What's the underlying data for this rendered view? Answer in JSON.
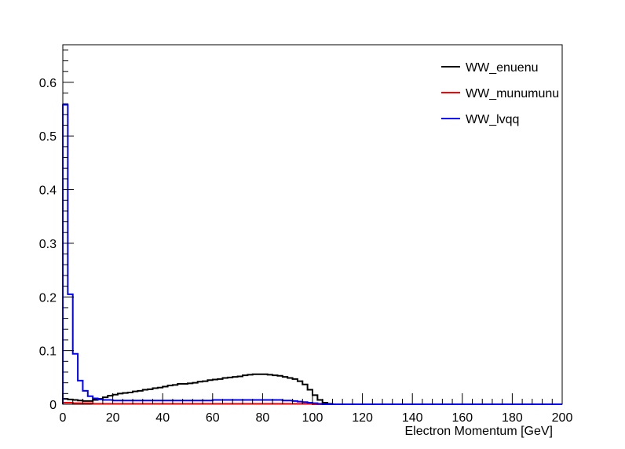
{
  "chart_data": {
    "type": "line",
    "xlabel": "Electron Momentum [GeV]",
    "ylabel": "",
    "xlim": [
      0,
      200
    ],
    "ylim": [
      0,
      0.67
    ],
    "bin_width": 2,
    "x_ticks": [
      "0",
      "20",
      "40",
      "60",
      "80",
      "100",
      "120",
      "140",
      "160",
      "180",
      "200"
    ],
    "y_ticks": [
      "0",
      "0.1",
      "0.2",
      "0.3",
      "0.4",
      "0.5",
      "0.6"
    ],
    "legend_position": "top-right",
    "grid": false,
    "series": [
      {
        "name": "WW_enuenu",
        "color": "#000000",
        "values": [
          0.01,
          0.009,
          0.008,
          0.007,
          0.006,
          0.006,
          0.008,
          0.01,
          0.013,
          0.016,
          0.018,
          0.02,
          0.021,
          0.022,
          0.024,
          0.025,
          0.027,
          0.028,
          0.03,
          0.031,
          0.033,
          0.035,
          0.036,
          0.038,
          0.038,
          0.039,
          0.04,
          0.042,
          0.043,
          0.045,
          0.046,
          0.047,
          0.049,
          0.05,
          0.051,
          0.052,
          0.054,
          0.055,
          0.056,
          0.056,
          0.056,
          0.055,
          0.054,
          0.053,
          0.051,
          0.049,
          0.047,
          0.043,
          0.037,
          0.027,
          0.017,
          0.008,
          0.003,
          0.001,
          0.0,
          0.0,
          0.0,
          0.0,
          0.0,
          0.0,
          0.0,
          0.0,
          0.0,
          0.0,
          0.0,
          0.0,
          0.0,
          0.0,
          0.0,
          0.0,
          0.0,
          0.0,
          0.0,
          0.0,
          0.0,
          0.0,
          0.0,
          0.0,
          0.0,
          0.0,
          0.0,
          0.0,
          0.0,
          0.0,
          0.0,
          0.0,
          0.0,
          0.0,
          0.0,
          0.0,
          0.0,
          0.0,
          0.0,
          0.0,
          0.0,
          0.0,
          0.0,
          0.0,
          0.0,
          0.0
        ]
      },
      {
        "name": "WW_munumunu",
        "color": "#ff0000",
        "values": [
          0.003,
          0.003,
          0.002,
          0.002,
          0.002,
          0.002,
          0.001,
          0.001,
          0.001,
          0.001,
          0.001,
          0.001,
          0.001,
          0.001,
          0.001,
          0.001,
          0.001,
          0.001,
          0.001,
          0.001,
          0.001,
          0.001,
          0.001,
          0.001,
          0.001,
          0.001,
          0.001,
          0.001,
          0.001,
          0.001,
          0.001,
          0.001,
          0.001,
          0.001,
          0.001,
          0.001,
          0.001,
          0.001,
          0.001,
          0.001,
          0.001,
          0.001,
          0.001,
          0.001,
          0.001,
          0.001,
          0.001,
          0.001,
          0.001,
          0.001,
          0.0,
          0.0,
          0.0,
          0.0,
          0.0,
          0.0,
          0.0,
          0.0,
          0.0,
          0.0,
          0.0,
          0.0,
          0.0,
          0.0,
          0.0,
          0.0,
          0.0,
          0.0,
          0.0,
          0.0,
          0.0,
          0.0,
          0.0,
          0.0,
          0.0,
          0.0,
          0.0,
          0.0,
          0.0,
          0.0,
          0.0,
          0.0,
          0.0,
          0.0,
          0.0,
          0.0,
          0.0,
          0.0,
          0.0,
          0.0,
          0.0,
          0.0,
          0.0,
          0.0,
          0.0,
          0.0,
          0.0,
          0.0,
          0.0,
          0.0
        ]
      },
      {
        "name": "WW_lvqq",
        "color": "#0000ff",
        "values": [
          0.558,
          0.205,
          0.094,
          0.044,
          0.025,
          0.015,
          0.011,
          0.009,
          0.008,
          0.008,
          0.007,
          0.007,
          0.007,
          0.007,
          0.007,
          0.007,
          0.007,
          0.007,
          0.007,
          0.007,
          0.007,
          0.007,
          0.007,
          0.007,
          0.007,
          0.007,
          0.007,
          0.007,
          0.007,
          0.007,
          0.008,
          0.008,
          0.008,
          0.008,
          0.008,
          0.008,
          0.008,
          0.008,
          0.008,
          0.008,
          0.008,
          0.008,
          0.008,
          0.008,
          0.007,
          0.007,
          0.006,
          0.005,
          0.004,
          0.003,
          0.002,
          0.001,
          0.0,
          0.0,
          0.0,
          0.0,
          0.0,
          0.0,
          0.0,
          0.0,
          0.0,
          0.0,
          0.0,
          0.0,
          0.0,
          0.0,
          0.0,
          0.0,
          0.0,
          0.0,
          0.0,
          0.0,
          0.0,
          0.0,
          0.0,
          0.0,
          0.0,
          0.0,
          0.0,
          0.0,
          0.0,
          0.0,
          0.0,
          0.0,
          0.0,
          0.0,
          0.0,
          0.0,
          0.0,
          0.0,
          0.0,
          0.0,
          0.0,
          0.0,
          0.0,
          0.0,
          0.0,
          0.0,
          0.0,
          0.0
        ]
      }
    ]
  }
}
